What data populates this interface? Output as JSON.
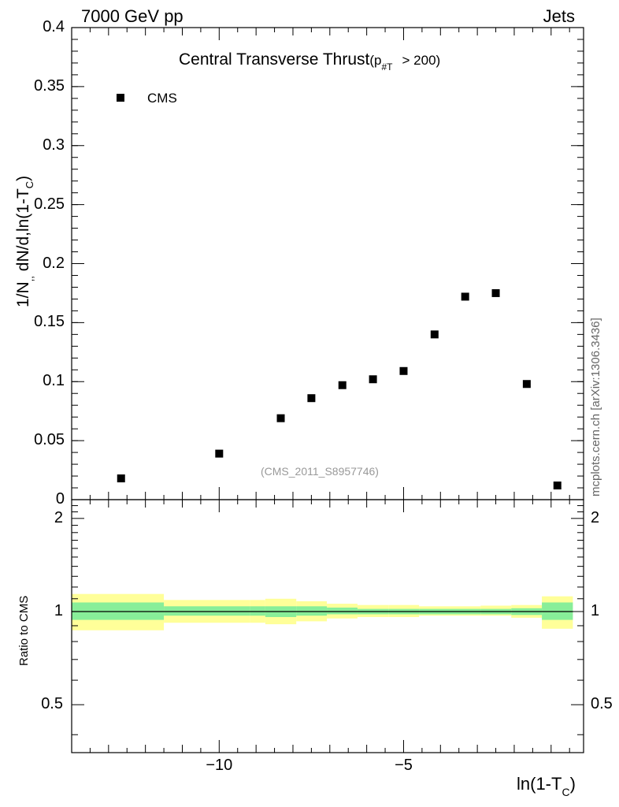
{
  "header": {
    "left": "7000 GeV pp",
    "right": "Jets"
  },
  "chart_data": [
    {
      "type": "scatter",
      "panel": "main",
      "title": "Central Transverse Thrust",
      "title_suffix": "(p",
      "title_sub": "#T",
      "title_cut": "> 200)",
      "ylabel_main": "1/N",
      "ylabel_sub": ",,",
      "ylabel_rest": "dN/d,ln(1-T",
      "ylabel_sub2": "C",
      "ylabel_end": ")",
      "xlim": [
        -14.0,
        -0.12
      ],
      "ylim": [
        0,
        0.4
      ],
      "yticks": [
        0,
        0.05,
        0.1,
        0.15,
        0.2,
        0.25,
        0.3,
        0.35,
        0.4
      ],
      "ytick_labels": [
        "0",
        "0.05",
        "0.1",
        "0.15",
        "0.2",
        "0.25",
        "0.3",
        "0.35",
        "0.4"
      ],
      "legend": {
        "position": "top-left",
        "entry": "CMS",
        "marker": "square"
      },
      "analysis_label": "(CMS_2011_S8957746)",
      "series": [
        {
          "name": "CMS",
          "color": "#000000",
          "x": [
            -12.66,
            -10.0,
            -8.33,
            -7.5,
            -6.66,
            -5.83,
            -5.0,
            -4.16,
            -3.33,
            -2.5,
            -1.66,
            -0.83
          ],
          "y": [
            0.018,
            0.039,
            0.069,
            0.086,
            0.097,
            0.102,
            0.109,
            0.14,
            0.172,
            0.175,
            0.098,
            0.012
          ]
        }
      ]
    },
    {
      "type": "area",
      "panel": "ratio",
      "ylabel": "Ratio to CMS",
      "xlabel_main": "ln(1-T",
      "xlabel_sub": "C",
      "xlabel_end": ")",
      "log_y": true,
      "ylim": [
        0.35,
        2.3
      ],
      "yticks_labeled": [
        0.5,
        1,
        2
      ],
      "ytick_labels": [
        "0.5",
        "1",
        "2"
      ],
      "xticks_labeled": [
        -10,
        -5
      ],
      "xtick_labels": [
        "−10",
        "−5"
      ],
      "reference_line": 1,
      "bands": {
        "outer_color": "#ffff99",
        "inner_color": "#88ee99",
        "bins": [
          {
            "x": [
              -14.0,
              -11.5
            ],
            "inner": [
              0.94,
              1.07
            ],
            "outer": [
              0.87,
              1.14
            ]
          },
          {
            "x": [
              -11.5,
              -9.16
            ],
            "inner": [
              0.97,
              1.04
            ],
            "outer": [
              0.92,
              1.09
            ]
          },
          {
            "x": [
              -9.16,
              -8.75
            ],
            "inner": [
              0.97,
              1.04
            ],
            "outer": [
              0.92,
              1.09
            ]
          },
          {
            "x": [
              -8.75,
              -7.91
            ],
            "inner": [
              0.96,
              1.04
            ],
            "outer": [
              0.91,
              1.1
            ]
          },
          {
            "x": [
              -7.91,
              -7.08
            ],
            "inner": [
              0.97,
              1.04
            ],
            "outer": [
              0.93,
              1.08
            ]
          },
          {
            "x": [
              -7.08,
              -6.25
            ],
            "inner": [
              0.98,
              1.03
            ],
            "outer": [
              0.95,
              1.06
            ]
          },
          {
            "x": [
              -6.25,
              -5.41
            ],
            "inner": [
              0.98,
              1.02
            ],
            "outer": [
              0.96,
              1.05
            ]
          },
          {
            "x": [
              -5.41,
              -4.58
            ],
            "inner": [
              0.98,
              1.02
            ],
            "outer": [
              0.96,
              1.05
            ]
          },
          {
            "x": [
              -4.58,
              -3.75
            ],
            "inner": [
              0.98,
              1.02
            ],
            "outer": [
              0.97,
              1.04
            ]
          },
          {
            "x": [
              -3.75,
              -2.91
            ],
            "inner": [
              0.98,
              1.02
            ],
            "outer": [
              0.97,
              1.04
            ]
          },
          {
            "x": [
              -2.91,
              -2.08
            ],
            "inner": [
              0.98,
              1.02
            ],
            "outer": [
              0.97,
              1.045
            ]
          },
          {
            "x": [
              -2.08,
              -1.25
            ],
            "inner": [
              0.975,
              1.025
            ],
            "outer": [
              0.955,
              1.05
            ]
          },
          {
            "x": [
              -1.25,
              -0.41
            ],
            "inner": [
              0.94,
              1.07
            ],
            "outer": [
              0.88,
              1.12
            ]
          }
        ]
      }
    }
  ],
  "side_label": "mcplots.cern.ch [arXiv:1306.3436]"
}
